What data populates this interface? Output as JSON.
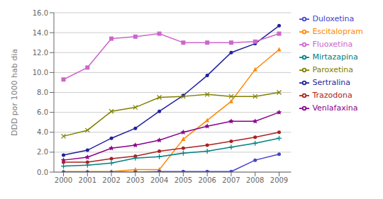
{
  "chart_data": {
    "type": "line",
    "y_label": "DDD por 1000 hab dia",
    "x": [
      2000,
      2001,
      2002,
      2003,
      2004,
      2005,
      2006,
      2007,
      2008,
      2009
    ],
    "xlim": [
      1999.6,
      2009.5
    ],
    "xticks": [
      2000,
      2001,
      2002,
      2003,
      2004,
      2005,
      2006,
      2007,
      2008,
      2009
    ],
    "ylim": [
      0.0,
      16.0
    ],
    "yticks": [
      {
        "value": 0,
        "label": "0.0"
      },
      {
        "value": 2,
        "label": "2.0"
      },
      {
        "value": 4,
        "label": "4.0"
      },
      {
        "value": 6,
        "label": "6.0"
      },
      {
        "value": 8,
        "label": "8.0"
      },
      {
        "value": 10,
        "label": "10.0"
      },
      {
        "value": 12,
        "label": "12.0"
      },
      {
        "value": 14,
        "label": "14.0"
      },
      {
        "value": 16,
        "label": "16.0"
      }
    ],
    "grid": "y",
    "legend": "right",
    "series": [
      {
        "name": "Sertralina",
        "color": "#1f1f9f",
        "marker": "circle",
        "values": [
          1.7,
          2.2,
          3.4,
          4.4,
          6.1,
          7.7,
          9.7,
          12.0,
          12.9,
          14.7
        ]
      },
      {
        "name": "Fluoxetina",
        "color": "#cc66cc",
        "marker": "square",
        "values": [
          9.3,
          10.5,
          13.4,
          13.6,
          13.9,
          13.0,
          13.0,
          13.0,
          13.1,
          13.9
        ]
      },
      {
        "name": "Escitalopram",
        "color": "#ff8800",
        "marker": "triangle",
        "values": [
          0.05,
          0.05,
          0.05,
          0.25,
          0.25,
          3.3,
          5.2,
          7.1,
          10.3,
          12.3
        ]
      },
      {
        "name": "Paroxetina",
        "color": "#808000",
        "marker": "x",
        "values": [
          3.6,
          4.2,
          6.1,
          6.5,
          7.5,
          7.6,
          7.8,
          7.6,
          7.6,
          8.0
        ]
      },
      {
        "name": "Venlafaxina",
        "color": "#8b008b",
        "marker": "star",
        "values": [
          1.2,
          1.5,
          2.4,
          2.7,
          3.2,
          4.0,
          4.6,
          5.1,
          5.1,
          6.0
        ]
      },
      {
        "name": "Trazodona",
        "color": "#aa2222",
        "marker": "circle",
        "values": [
          1.0,
          1.0,
          1.35,
          1.6,
          2.1,
          2.4,
          2.7,
          3.1,
          3.5,
          4.0
        ]
      },
      {
        "name": "Mirtazapina",
        "color": "#008080",
        "marker": "plus",
        "values": [
          0.6,
          0.7,
          0.9,
          1.4,
          1.55,
          1.9,
          2.1,
          2.5,
          2.9,
          3.4
        ]
      },
      {
        "name": "Duloxetina",
        "color": "#4444cc",
        "marker": "circle",
        "values": [
          0.0,
          0.0,
          0.0,
          0.0,
          0.05,
          0.05,
          0.05,
          0.05,
          1.2,
          1.8
        ]
      }
    ]
  }
}
